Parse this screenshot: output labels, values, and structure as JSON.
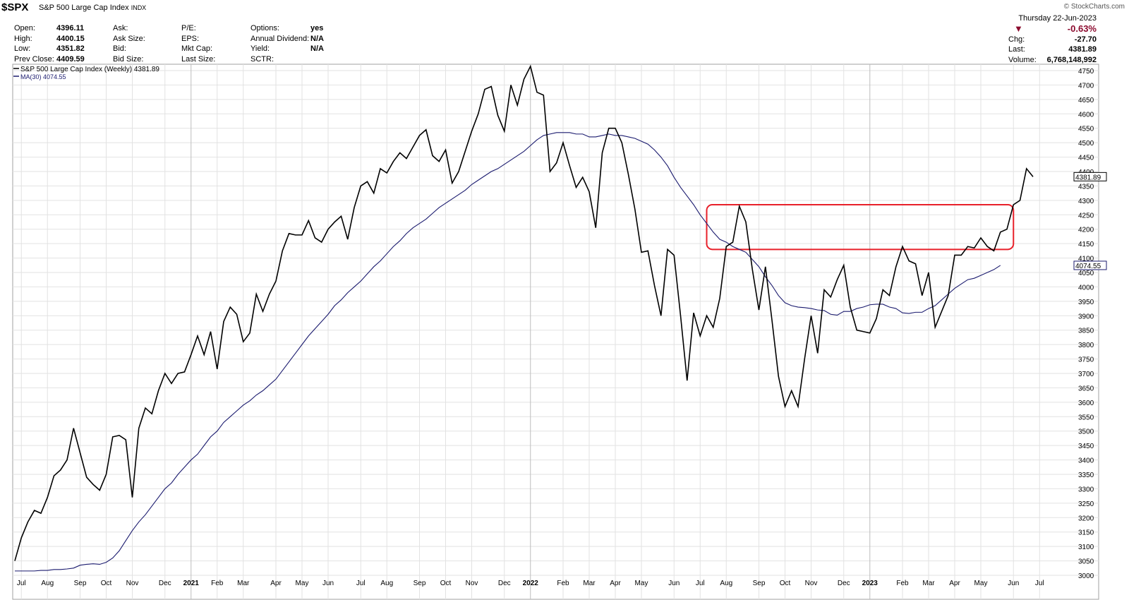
{
  "header": {
    "symbol": "$SPX",
    "name": "S&P 500 Large Cap Index",
    "exchange": "INDX",
    "brand": "© StockCharts.com",
    "quotes": {
      "col1": [
        {
          "label": "Open:",
          "value": "4396.11"
        },
        {
          "label": "High:",
          "value": "4400.15"
        },
        {
          "label": "Low:",
          "value": "4351.82"
        },
        {
          "label": "Prev Close:",
          "value": "4409.59"
        }
      ],
      "col2": [
        "Ask:",
        "Ask Size:",
        "Bid:",
        "Bid Size:"
      ],
      "col3": [
        "P/E:",
        "EPS:",
        "Mkt Cap:",
        "Last Size:"
      ],
      "col4": [
        {
          "label": "Options:",
          "value": "yes"
        },
        {
          "label": "Annual Dividend:",
          "value": "N/A"
        },
        {
          "label": "Yield:",
          "value": "N/A"
        },
        {
          "label": "SCTR:",
          "value": ""
        }
      ]
    },
    "right": {
      "date": "Thursday  22-Jun-2023",
      "pct": "-0.63%",
      "chg_label": "Chg:",
      "chg": "-27.70",
      "last_label": "Last:",
      "last": "4381.89",
      "vol_label": "Volume:",
      "vol": "6,768,148,992"
    }
  },
  "chart_data": {
    "type": "line",
    "legend": [
      {
        "name": "S&P 500 Large Cap Index (Weekly) 4381.89",
        "color": "#000000"
      },
      {
        "name": "MA(30) 4074.55",
        "color": "#1a1a6e"
      }
    ],
    "ylim": [
      3000,
      4750
    ],
    "y_ticks": [
      3000,
      3050,
      3100,
      3150,
      3200,
      3250,
      3300,
      3350,
      3400,
      3450,
      3500,
      3550,
      3600,
      3650,
      3700,
      3750,
      3800,
      3850,
      3900,
      3950,
      4000,
      4050,
      4100,
      4150,
      4200,
      4250,
      4300,
      4350,
      4400,
      4450,
      4500,
      4550,
      4600,
      4650,
      4700,
      4750
    ],
    "last_price_label": "4381.89",
    "ma_label": "4074.55",
    "x_labels": [
      {
        "label": "Jul",
        "week": 1
      },
      {
        "label": "Aug",
        "week": 5
      },
      {
        "label": "Sep",
        "week": 10
      },
      {
        "label": "Oct",
        "week": 14
      },
      {
        "label": "Nov",
        "week": 18
      },
      {
        "label": "Dec",
        "week": 23
      },
      {
        "label": "2021",
        "week": 27
      },
      {
        "label": "Feb",
        "week": 31
      },
      {
        "label": "Mar",
        "week": 35
      },
      {
        "label": "Apr",
        "week": 40
      },
      {
        "label": "May",
        "week": 44
      },
      {
        "label": "Jun",
        "week": 48
      },
      {
        "label": "Jul",
        "week": 53
      },
      {
        "label": "Aug",
        "week": 57
      },
      {
        "label": "Sep",
        "week": 62
      },
      {
        "label": "Oct",
        "week": 66
      },
      {
        "label": "Nov",
        "week": 70
      },
      {
        "label": "Dec",
        "week": 75
      },
      {
        "label": "2022",
        "week": 79
      },
      {
        "label": "Feb",
        "week": 84
      },
      {
        "label": "Mar",
        "week": 88
      },
      {
        "label": "Apr",
        "week": 92
      },
      {
        "label": "May",
        "week": 96
      },
      {
        "label": "Jun",
        "week": 101
      },
      {
        "label": "Jul",
        "week": 105
      },
      {
        "label": "Aug",
        "week": 109
      },
      {
        "label": "Sep",
        "week": 114
      },
      {
        "label": "Oct",
        "week": 118
      },
      {
        "label": "Nov",
        "week": 122
      },
      {
        "label": "Dec",
        "week": 127
      },
      {
        "label": "2023",
        "week": 131
      },
      {
        "label": "Feb",
        "week": 136
      },
      {
        "label": "Mar",
        "week": 140
      },
      {
        "label": "Apr",
        "week": 144
      },
      {
        "label": "May",
        "week": 148
      },
      {
        "label": "Jun",
        "week": 153
      },
      {
        "label": "Jul",
        "week": 157
      }
    ],
    "series": [
      {
        "name": "S&P 500 Large Cap Index (Weekly) 4381.89",
        "color": "#000000",
        "values": [
          3050,
          3130,
          3185,
          3225,
          3215,
          3270,
          3345,
          3365,
          3400,
          3510,
          3425,
          3340,
          3315,
          3295,
          3350,
          3480,
          3485,
          3470,
          3270,
          3510,
          3580,
          3560,
          3640,
          3700,
          3665,
          3700,
          3705,
          3765,
          3830,
          3765,
          3845,
          3715,
          3880,
          3930,
          3905,
          3810,
          3840,
          3975,
          3915,
          3975,
          4020,
          4125,
          4185,
          4180,
          4180,
          4230,
          4170,
          4155,
          4200,
          4225,
          4245,
          4165,
          4275,
          4350,
          4365,
          4325,
          4410,
          4395,
          4435,
          4465,
          4445,
          4485,
          4525,
          4545,
          4455,
          4435,
          4475,
          4360,
          4400,
          4470,
          4540,
          4600,
          4685,
          4695,
          4595,
          4540,
          4700,
          4630,
          4720,
          4765,
          4675,
          4665,
          4400,
          4430,
          4500,
          4420,
          4345,
          4380,
          4330,
          4205,
          4465,
          4550,
          4550,
          4500,
          4390,
          4270,
          4120,
          4125,
          4005,
          3900,
          4130,
          4110,
          3900,
          3675,
          3910,
          3830,
          3900,
          3860,
          3960,
          4140,
          4155,
          4280,
          4225,
          4060,
          3920,
          4070,
          3885,
          3690,
          3585,
          3640,
          3585,
          3750,
          3900,
          3770,
          3990,
          3965,
          4025,
          4075,
          3930,
          3850,
          3845,
          3840,
          3890,
          3990,
          3970,
          4070,
          4140,
          4090,
          4080,
          3970,
          4050,
          3860,
          3915,
          3970,
          4110,
          4110,
          4140,
          4135,
          4170,
          4140,
          4125,
          4190,
          4200,
          4285,
          4300,
          4410,
          4382
        ]
      },
      {
        "name": "MA(30) 4074.55",
        "color": "#1a1a6e",
        "values": [
          3015,
          3015,
          3015,
          3015,
          3017,
          3017,
          3020,
          3020,
          3022,
          3025,
          3035,
          3038,
          3040,
          3038,
          3045,
          3060,
          3085,
          3120,
          3155,
          3185,
          3210,
          3240,
          3270,
          3300,
          3320,
          3350,
          3375,
          3400,
          3420,
          3450,
          3480,
          3500,
          3530,
          3550,
          3570,
          3590,
          3605,
          3625,
          3640,
          3660,
          3680,
          3710,
          3740,
          3770,
          3800,
          3830,
          3855,
          3880,
          3905,
          3935,
          3955,
          3980,
          4000,
          4020,
          4045,
          4070,
          4090,
          4115,
          4140,
          4160,
          4185,
          4205,
          4220,
          4235,
          4255,
          4275,
          4290,
          4305,
          4320,
          4335,
          4355,
          4370,
          4385,
          4400,
          4410,
          4425,
          4440,
          4455,
          4470,
          4490,
          4510,
          4525,
          4530,
          4535,
          4535,
          4535,
          4530,
          4530,
          4520,
          4520,
          4525,
          4530,
          4525,
          4525,
          4520,
          4515,
          4505,
          4495,
          4475,
          4450,
          4420,
          4380,
          4345,
          4315,
          4285,
          4250,
          4220,
          4190,
          4165,
          4155,
          4140,
          4130,
          4120,
          4095,
          4070,
          4035,
          4005,
          3970,
          3945,
          3935,
          3930,
          3928,
          3925,
          3920,
          3918,
          3905,
          3902,
          3915,
          3915,
          3925,
          3930,
          3938,
          3940,
          3940,
          3930,
          3925,
          3910,
          3908,
          3912,
          3912,
          3925,
          3935,
          3955,
          3975,
          3995,
          4010,
          4025,
          4030,
          4040,
          4050,
          4060,
          4074.55
        ]
      }
    ],
    "highlight_box": {
      "y_low": 4130,
      "y_high": 4285,
      "week_start": 106,
      "week_end": 153,
      "color": "#e8202a"
    }
  }
}
